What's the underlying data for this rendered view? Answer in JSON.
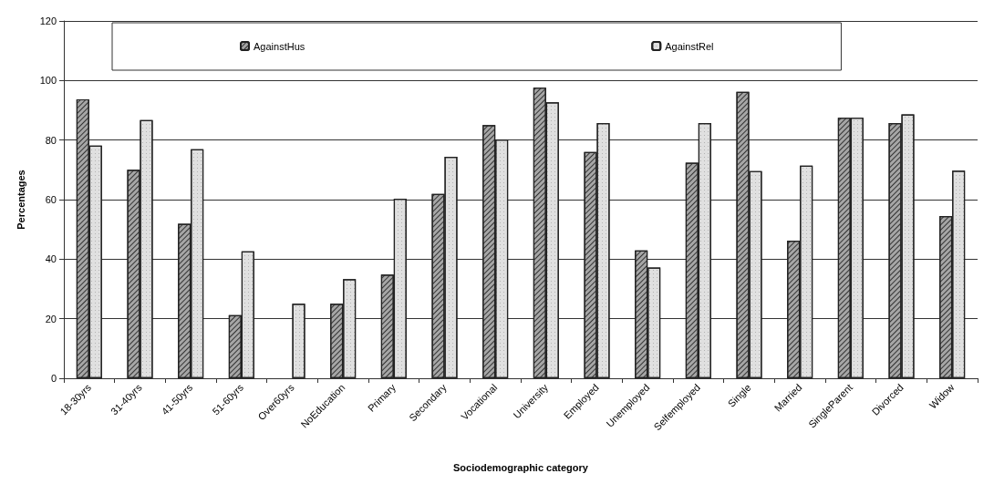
{
  "chart_data": {
    "type": "bar",
    "xlabel": "Sociodemographic category",
    "ylabel": "Percentages",
    "categories": [
      "18-30yrs",
      "31-40yrs",
      "41-50yrs",
      "51-60yrs",
      "Over60yrs",
      "NoEducation",
      "Primary",
      "Secondary",
      "Vocational",
      "University",
      "Employed",
      "Unemployed",
      "Selfemployed",
      "Single",
      "Married",
      "SingleParent",
      "Divorced",
      "Widow"
    ],
    "series": [
      {
        "name": "AgainstHus",
        "color": "#a6a6a6",
        "values": [
          93.7,
          70,
          51.9,
          21.2,
          null,
          25,
          34.8,
          61.9,
          85,
          97.6,
          76,
          42.9,
          72.4,
          96.2,
          46.2,
          87.5,
          85.7,
          54.5
        ]
      },
      {
        "name": "AgainstRel",
        "color": "#e0e0e0",
        "values": [
          78.1,
          86.7,
          76.9,
          42.6,
          25,
          33.3,
          60.3,
          74.4,
          80.2,
          92.7,
          85.7,
          37.2,
          85.7,
          69.6,
          71.4,
          87.5,
          88.6,
          69.7
        ]
      }
    ],
    "ylim": [
      0,
      120
    ],
    "yticks": [
      0,
      20,
      40,
      60,
      80,
      100,
      120
    ],
    "grid": "y",
    "legend": "top"
  }
}
